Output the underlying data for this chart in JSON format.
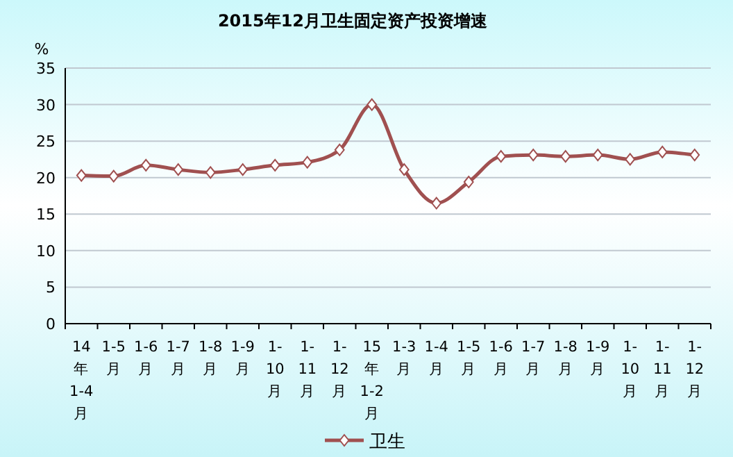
{
  "chart_data": {
    "type": "line",
    "title": "2015年12月卫生固定资产投资增速",
    "ylabel": "%",
    "categories": [
      "14年1-4月",
      "1-5月",
      "1-6月",
      "1-7月",
      "1-8月",
      "1-9月",
      "1-10月",
      "1-11月",
      "1-12月",
      "15年1-2月",
      "1-3月",
      "1-4月",
      "1-5月",
      "1-6月",
      "1-7月",
      "1-8月",
      "1-9月",
      "1-10月",
      "1-11月",
      "1-12月"
    ],
    "series": [
      {
        "name": "卫生",
        "color": "#a05050",
        "values": [
          20.3,
          20.2,
          21.7,
          21.1,
          20.7,
          21.1,
          21.7,
          22.1,
          23.8,
          30.0,
          21.1,
          16.5,
          19.4,
          22.9,
          23.1,
          22.9,
          23.1,
          22.5,
          23.5,
          23.1
        ]
      }
    ],
    "ylim": [
      0,
      35
    ],
    "yticks": [
      0,
      5,
      10,
      15,
      20,
      25,
      30,
      35
    ],
    "grid": "y",
    "legend": "bottom",
    "marker": "diamond",
    "line_style": "solid"
  }
}
